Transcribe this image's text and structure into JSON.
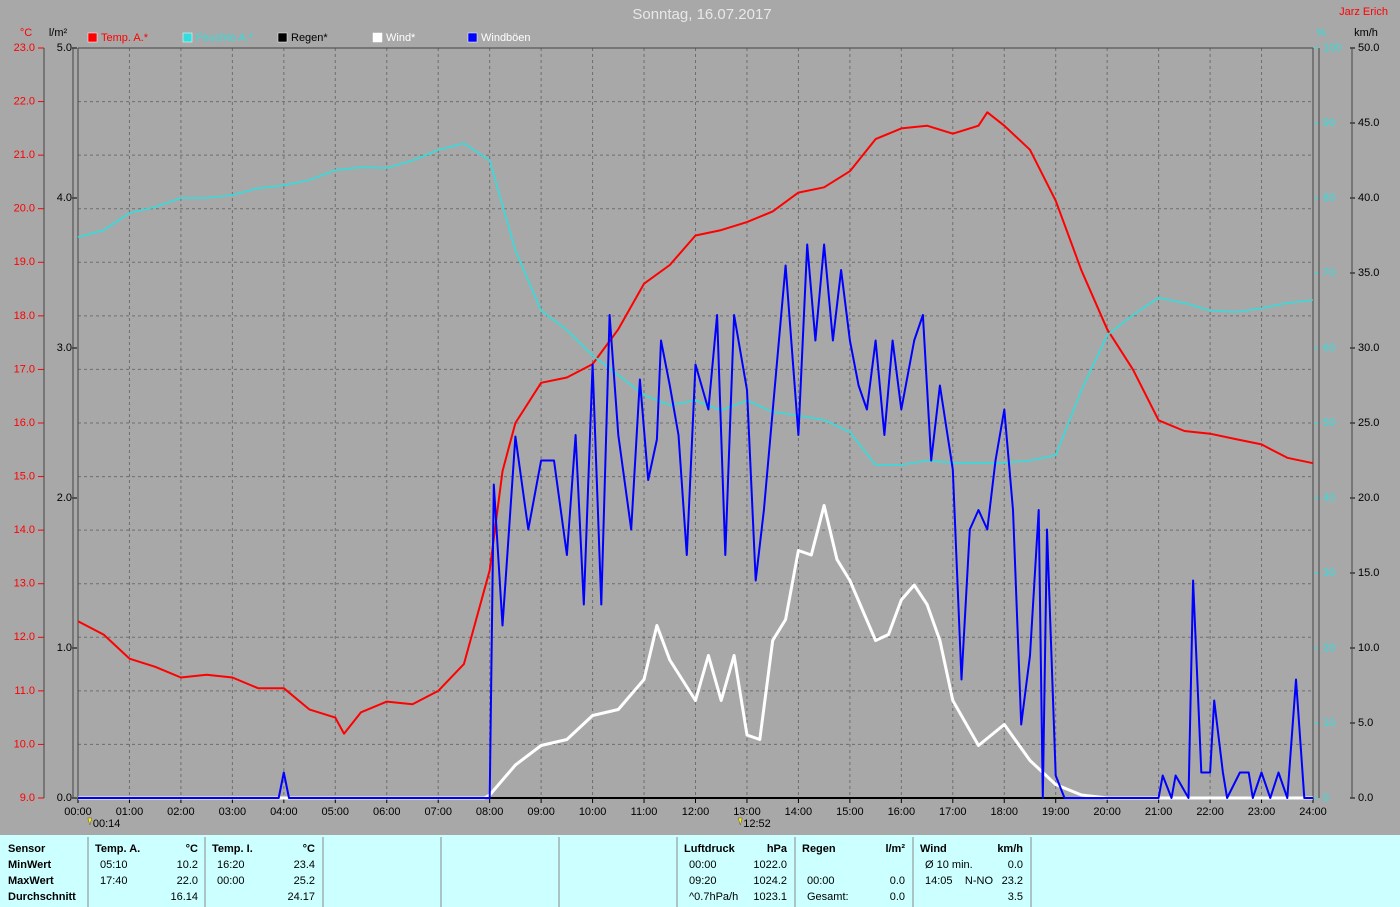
{
  "chart_data": {
    "type": "line",
    "title": "Sonntag, 16.07.2017",
    "author": "Jarz Erich",
    "units": {
      "temp": "°C",
      "rain": "l/m²",
      "humidity": "%",
      "wind": "km/h"
    },
    "xlim": [
      0,
      24
    ],
    "xticks": [
      {
        "value": 0,
        "label": "00:00"
      },
      {
        "value": 1,
        "label": "01:00"
      },
      {
        "value": 2,
        "label": "02:00"
      },
      {
        "value": 3,
        "label": "03:00"
      },
      {
        "value": 4,
        "label": "04:00"
      },
      {
        "value": 5,
        "label": "05:00"
      },
      {
        "value": 6,
        "label": "06:00"
      },
      {
        "value": 7,
        "label": "07:00"
      },
      {
        "value": 8,
        "label": "08:00"
      },
      {
        "value": 9,
        "label": "09:00"
      },
      {
        "value": 10,
        "label": "10:00"
      },
      {
        "value": 11,
        "label": "11:00"
      },
      {
        "value": 12,
        "label": "12:00"
      },
      {
        "value": 13,
        "label": "13:00"
      },
      {
        "value": 14,
        "label": "14:00"
      },
      {
        "value": 15,
        "label": "15:00"
      },
      {
        "value": 16,
        "label": "16:00"
      },
      {
        "value": 17,
        "label": "17:00"
      },
      {
        "value": 18,
        "label": "18:00"
      },
      {
        "value": 19,
        "label": "19:00"
      },
      {
        "value": 20,
        "label": "20:00"
      },
      {
        "value": 21,
        "label": "21:00"
      },
      {
        "value": 22,
        "label": "22:00"
      },
      {
        "value": 23,
        "label": "23:00"
      },
      {
        "value": 24,
        "label": "24:00"
      }
    ],
    "ylim": [
      9,
      23
    ],
    "yticks": [
      {
        "value": 9,
        "label": "9.0"
      },
      {
        "value": 10,
        "label": "10.0"
      },
      {
        "value": 11,
        "label": "11.0"
      },
      {
        "value": 12,
        "label": "12.0"
      },
      {
        "value": 13,
        "label": "13.0"
      },
      {
        "value": 14,
        "label": "14.0"
      },
      {
        "value": 15,
        "label": "15.0"
      },
      {
        "value": 16,
        "label": "16.0"
      },
      {
        "value": 17,
        "label": "17.0"
      },
      {
        "value": 18,
        "label": "18.0"
      },
      {
        "value": 19,
        "label": "19.0"
      },
      {
        "value": 20,
        "label": "20.0"
      },
      {
        "value": 21,
        "label": "21.0"
      },
      {
        "value": 22,
        "label": "22.0"
      },
      {
        "value": 23,
        "label": "23.0"
      }
    ],
    "y4lim": [
      0,
      5
    ],
    "y4ticks": [
      {
        "value": 0,
        "label": "0.0"
      },
      {
        "value": 1,
        "label": "1.0"
      },
      {
        "value": 2,
        "label": "2.0"
      },
      {
        "value": 3,
        "label": "3.0"
      },
      {
        "value": 4,
        "label": "4.0"
      },
      {
        "value": 5,
        "label": "5.0"
      }
    ],
    "y2lim": [
      0,
      100
    ],
    "y2ticks": [
      0,
      10,
      20,
      30,
      40,
      50,
      60,
      70,
      80,
      90,
      100
    ],
    "y3lim": [
      0,
      50
    ],
    "y3ticks": [
      {
        "value": 0,
        "label": "0.0"
      },
      {
        "value": 5,
        "label": "5.0"
      },
      {
        "value": 10,
        "label": "10.0"
      },
      {
        "value": 15,
        "label": "15.0"
      },
      {
        "value": 20,
        "label": "20.0"
      },
      {
        "value": 25,
        "label": "25.0"
      },
      {
        "value": 30,
        "label": "30.0"
      },
      {
        "value": 35,
        "label": "35.0"
      },
      {
        "value": 40,
        "label": "40.0"
      },
      {
        "value": 45,
        "label": "45.0"
      },
      {
        "value": 50,
        "label": "50.0"
      }
    ],
    "grid": true,
    "series": [
      {
        "name": "Temp. A.*",
        "color": "#ff0000",
        "axis": "y",
        "x": [
          0,
          0.5,
          1,
          1.5,
          2,
          2.5,
          3,
          3.5,
          4,
          4.5,
          5,
          5.17,
          5.5,
          6,
          6.5,
          7,
          7.5,
          8,
          8.25,
          8.5,
          9,
          9.5,
          10,
          10.5,
          11,
          11.5,
          12,
          12.5,
          13,
          13.5,
          14,
          14.5,
          15,
          15.5,
          16,
          16.5,
          17,
          17.5,
          17.67,
          18,
          18.5,
          19,
          19.5,
          20,
          20.5,
          21,
          21.5,
          22,
          22.5,
          23,
          23.5,
          24
        ],
        "values": [
          12.3,
          12.05,
          11.6,
          11.45,
          11.25,
          11.3,
          11.25,
          11.05,
          11.05,
          10.65,
          10.5,
          10.2,
          10.6,
          10.8,
          10.75,
          11.0,
          11.5,
          13.25,
          15.1,
          16.0,
          16.75,
          16.85,
          17.1,
          17.75,
          18.6,
          18.95,
          19.5,
          19.6,
          19.75,
          19.95,
          20.3,
          20.4,
          20.7,
          21.3,
          21.5,
          21.55,
          21.4,
          21.55,
          21.8,
          21.55,
          21.1,
          20.15,
          18.85,
          17.75,
          17.0,
          16.05,
          15.85,
          15.8,
          15.7,
          15.6,
          15.35,
          15.25
        ]
      },
      {
        "name": "Feuchte A.*",
        "color": "#33dddd",
        "axis": "y2",
        "x": [
          0,
          0.5,
          1,
          1.5,
          2,
          2.5,
          3,
          3.5,
          4,
          4.5,
          5,
          5.5,
          6,
          6.5,
          7,
          7.5,
          8,
          8.5,
          9,
          9.5,
          10,
          10.5,
          11,
          11.5,
          12,
          12.5,
          13,
          13.5,
          14,
          14.5,
          15,
          15.5,
          16,
          16.5,
          17,
          17.5,
          18,
          18.5,
          19,
          19.5,
          20,
          20.5,
          21,
          21.5,
          22,
          22.5,
          23,
          23.5,
          24
        ],
        "values": [
          74.8,
          75.7,
          78,
          78.8,
          80,
          80,
          80.4,
          81.3,
          81.7,
          82.4,
          83.7,
          84.1,
          84,
          85,
          86.4,
          87.3,
          85,
          73,
          65,
          62.4,
          59,
          56.4,
          53.7,
          52.4,
          53,
          51.7,
          53,
          51.5,
          51,
          50.4,
          48.8,
          44.4,
          44.4,
          45,
          44.7,
          44.7,
          44.7,
          45,
          45.7,
          54.4,
          61.7,
          64.4,
          66.7,
          66,
          65,
          64.8,
          65.3,
          66,
          66.4
        ]
      },
      {
        "name": "Regen*",
        "color": "#000000",
        "axis": "y4",
        "x": [
          0,
          24
        ],
        "values": [
          0,
          0
        ]
      },
      {
        "name": "Wind*",
        "color": "#ffffff",
        "axis": "y3",
        "x": [
          0,
          7.9,
          8,
          8.5,
          9,
          9.5,
          10,
          10.5,
          11,
          11.25,
          11.5,
          12,
          12.25,
          12.5,
          12.75,
          13,
          13.25,
          13.5,
          13.75,
          14,
          14.25,
          14.5,
          14.75,
          15,
          15.25,
          15.5,
          15.75,
          16,
          16.25,
          16.5,
          16.75,
          17,
          17.5,
          18,
          18.5,
          19,
          19.5,
          20,
          24
        ],
        "values": [
          0,
          0,
          0.2,
          2.2,
          3.5,
          3.9,
          5.5,
          5.9,
          7.9,
          11.5,
          9.2,
          6.5,
          9.5,
          6.5,
          9.5,
          4.2,
          3.9,
          10.5,
          11.9,
          16.5,
          16.2,
          19.5,
          15.9,
          14.5,
          12.5,
          10.5,
          10.9,
          13.2,
          14.2,
          12.9,
          10.5,
          6.5,
          3.5,
          4.9,
          2.5,
          0.9,
          0.2,
          0,
          0
        ]
      },
      {
        "name": "Windböen",
        "color": "#0000ff",
        "axis": "y3",
        "x": [
          0,
          3.9,
          4.0,
          4.1,
          8.0,
          8.08,
          8.25,
          8.5,
          8.75,
          9.0,
          9.25,
          9.5,
          9.67,
          9.83,
          10.0,
          10.17,
          10.33,
          10.5,
          10.75,
          10.92,
          11.08,
          11.25,
          11.33,
          11.5,
          11.67,
          11.83,
          12.0,
          12.25,
          12.42,
          12.58,
          12.75,
          13.0,
          13.17,
          13.33,
          13.58,
          13.75,
          14.0,
          14.17,
          14.33,
          14.5,
          14.67,
          14.83,
          15.0,
          15.17,
          15.33,
          15.5,
          15.67,
          15.83,
          16.0,
          16.25,
          16.42,
          16.58,
          16.75,
          17.0,
          17.17,
          17.33,
          17.5,
          17.67,
          17.83,
          18.0,
          18.17,
          18.33,
          18.5,
          18.67,
          18.75,
          18.83,
          19.0,
          19.17,
          21.0,
          21.08,
          21.25,
          21.33,
          21.58,
          21.67,
          21.83,
          22.0,
          22.08,
          22.25,
          22.33,
          22.58,
          22.75,
          22.83,
          23.0,
          23.17,
          23.33,
          23.5,
          23.67,
          23.83,
          24.0
        ],
        "values": [
          0,
          0,
          1.7,
          0,
          0,
          20.9,
          11.5,
          24.1,
          17.9,
          22.5,
          22.5,
          16.2,
          24.2,
          12.9,
          28.9,
          12.9,
          32.2,
          24.2,
          17.9,
          27.9,
          21.2,
          23.9,
          30.5,
          27.5,
          24.2,
          16.2,
          28.9,
          25.9,
          32.2,
          16.2,
          32.2,
          27.2,
          14.5,
          19.2,
          28.9,
          35.5,
          24.2,
          36.9,
          30.5,
          36.9,
          30.5,
          35.2,
          30.5,
          27.5,
          25.9,
          30.5,
          24.2,
          30.5,
          25.9,
          30.5,
          32.2,
          22.5,
          27.5,
          21.9,
          7.9,
          17.9,
          19.2,
          17.9,
          22.5,
          25.9,
          19.2,
          4.9,
          9.5,
          19.2,
          0,
          17.9,
          1.5,
          0,
          0,
          1.5,
          0,
          1.5,
          0,
          14.5,
          1.7,
          1.7,
          6.5,
          1.7,
          0,
          1.7,
          1.7,
          0,
          1.7,
          0,
          1.7,
          0,
          7.9,
          0,
          0
        ]
      }
    ],
    "annotations": [
      {
        "x": 0.23,
        "label": "00:14"
      },
      {
        "x": 12.87,
        "label": "12:52"
      }
    ]
  },
  "table": {
    "row_header": "Sensor",
    "row_labels": [
      "MinWert",
      "MaxWert",
      "Durchschnitt"
    ],
    "groups": [
      {
        "name": "Temp. A.",
        "unit": "°C",
        "rows": [
          [
            "05:10",
            "10.2"
          ],
          [
            "17:40",
            "22.0"
          ],
          [
            null,
            "16.14"
          ]
        ]
      },
      {
        "name": "Temp. I.",
        "unit": "°C",
        "rows": [
          [
            "16:20",
            "23.4"
          ],
          [
            "00:00",
            "25.2"
          ],
          [
            null,
            "24.17"
          ]
        ]
      },
      {
        "name": "Luftdruck",
        "unit": "hPa",
        "rows": [
          [
            "00:00",
            "1022.0"
          ],
          [
            "09:20",
            "1024.2"
          ],
          [
            "^0.7hPa/h",
            "1023.1"
          ]
        ]
      },
      {
        "name": "Regen",
        "unit": "l/m²",
        "rows": [
          [
            null,
            null
          ],
          [
            "00:00",
            "0.0"
          ],
          [
            "Gesamt:",
            "0.0"
          ]
        ]
      },
      {
        "name": "Wind",
        "unit": "km/h",
        "rows": [
          [
            "Ø 10 min.",
            null,
            "0.0"
          ],
          [
            "14:05",
            "N-NO",
            "23.2"
          ],
          [
            null,
            null,
            "3.5"
          ]
        ]
      }
    ]
  }
}
